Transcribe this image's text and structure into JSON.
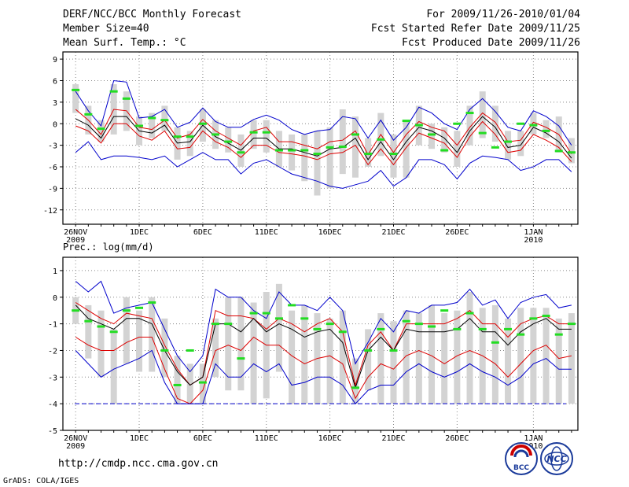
{
  "header": {
    "title": "DERF/NCC/BCC Monthly Forecast",
    "member_size": "Member Size=40",
    "variable": "Mean Surf. Temp.: °C",
    "period": "For 2009/11/26-2010/01/04",
    "started": "Fcst Started Refer Date 2009/11/25",
    "produced": "Fcst Produced Date 2009/11/26"
  },
  "footer": {
    "url": "http://cmdp.ncc.cma.gov.cn",
    "credit": "GrADS: COLA/IGES",
    "logo1_text": "BCC",
    "logo2_text": "NCC"
  },
  "colors": {
    "envelope": "#0000cc",
    "spread": "#dd0000",
    "mean": "#000000",
    "marker": "#22dd22",
    "bar": "#d3d3d3",
    "floor": "#0000cc"
  },
  "chart_data": [
    {
      "type": "line",
      "title": "Mean Surf. Temp.: °C",
      "ylim": [
        -14,
        10
      ],
      "yticks": [
        9,
        6,
        3,
        0,
        -3,
        -6,
        -9,
        -12
      ],
      "xlim": [
        -1,
        39.5
      ],
      "xtick_labels": [
        {
          "x": 0,
          "label": "26NOV",
          "sub": "2009"
        },
        {
          "x": 5,
          "label": "1DEC"
        },
        {
          "x": 10,
          "label": "6DEC"
        },
        {
          "x": 15,
          "label": "11DEC"
        },
        {
          "x": 20,
          "label": "16DEC"
        },
        {
          "x": 25,
          "label": "21DEC"
        },
        {
          "x": 30,
          "label": "26DEC"
        },
        {
          "x": 36,
          "label": "1JAN",
          "sub": "2010"
        }
      ],
      "series": [
        {
          "name": "max",
          "values": [
            4.5,
            1.8,
            -0.3,
            6.0,
            5.8,
            0.8,
            1.0,
            2.0,
            -0.5,
            0.2,
            2.2,
            0.3,
            -0.5,
            -0.5,
            0.6,
            1.2,
            0.5,
            -0.8,
            -1.5,
            -1.0,
            -0.8,
            1.0,
            0.7,
            -2.0,
            0.5,
            -2.3,
            -0.5,
            2.3,
            1.5,
            0.0,
            -0.8,
            2.0,
            3.5,
            1.7,
            -0.5,
            -1.0,
            1.8,
            1.0,
            -0.3,
            -3.0
          ]
        },
        {
          "name": "upper",
          "values": [
            2.0,
            0.5,
            -1.5,
            2.0,
            1.8,
            -0.5,
            -0.8,
            0.5,
            -2.0,
            -1.5,
            0.6,
            -1.0,
            -2.0,
            -3.0,
            -1.0,
            -0.5,
            -2.5,
            -2.5,
            -3.0,
            -3.5,
            -2.5,
            -2.3,
            -1.0,
            -4.3,
            -1.5,
            -4.0,
            -1.5,
            0.3,
            -0.5,
            -1.0,
            -3.0,
            -0.5,
            1.5,
            0.2,
            -2.5,
            -2.3,
            0.2,
            -0.5,
            -1.5,
            -4.2
          ]
        },
        {
          "name": "mean",
          "values": [
            0.7,
            -0.2,
            -2.0,
            1.0,
            1.0,
            -1.0,
            -1.3,
            -0.2,
            -2.7,
            -2.5,
            -0.2,
            -1.8,
            -2.7,
            -3.7,
            -2.0,
            -2.0,
            -3.5,
            -3.5,
            -4.0,
            -4.5,
            -3.5,
            -3.3,
            -2.0,
            -5.0,
            -2.5,
            -5.0,
            -2.5,
            -0.5,
            -1.0,
            -2.0,
            -4.0,
            -1.0,
            1.0,
            -0.5,
            -3.3,
            -3.0,
            -0.5,
            -1.3,
            -2.5,
            -4.8
          ]
        },
        {
          "name": "lower",
          "values": [
            -0.3,
            -1.0,
            -2.7,
            0.0,
            0.0,
            -1.7,
            -2.3,
            -1.0,
            -3.5,
            -3.3,
            -1.0,
            -2.5,
            -3.3,
            -4.7,
            -3.0,
            -3.0,
            -4.0,
            -4.2,
            -4.5,
            -5.0,
            -4.2,
            -4.0,
            -3.0,
            -5.7,
            -3.5,
            -5.7,
            -3.3,
            -1.3,
            -2.0,
            -2.7,
            -4.7,
            -1.8,
            0.3,
            -1.5,
            -4.0,
            -3.7,
            -1.5,
            -2.3,
            -3.3,
            -5.3
          ]
        },
        {
          "name": "min",
          "values": [
            -4.0,
            -2.5,
            -5.0,
            -4.5,
            -4.5,
            -4.7,
            -5.0,
            -4.5,
            -6.0,
            -5.0,
            -4.0,
            -5.0,
            -5.0,
            -7.0,
            -5.5,
            -5.0,
            -6.0,
            -7.0,
            -7.5,
            -8.0,
            -8.7,
            -9.0,
            -8.5,
            -8.0,
            -6.5,
            -8.7,
            -7.5,
            -5.0,
            -5.0,
            -5.7,
            -7.7,
            -5.5,
            -4.5,
            -4.7,
            -5.0,
            -6.5,
            -6.0,
            -5.0,
            -5.0,
            -6.7
          ]
        }
      ],
      "observed": [
        4.7,
        1.3,
        -0.7,
        4.5,
        3.5,
        -0.3,
        0.8,
        0.5,
        -1.8,
        -1.8,
        0.0,
        -1.5,
        -2.5,
        -4.0,
        -1.2,
        -1.2,
        -3.7,
        -3.7,
        -3.7,
        -4.2,
        -3.3,
        -3.2,
        -1.5,
        -4.2,
        -2.2,
        -4.2,
        0.4,
        -0.2,
        -1.5,
        -3.7,
        0.0,
        1.5,
        -1.3,
        -3.3,
        -2.5,
        0.0,
        -0.2,
        -1.0,
        -3.8,
        -4.0
      ],
      "bars": [
        [
          1.5,
          5.5
        ],
        [
          -1.5,
          2.5
        ],
        [
          -2.5,
          0.5
        ],
        [
          -1.5,
          5.5
        ],
        [
          -1.0,
          4.5
        ],
        [
          -3.0,
          1.0
        ],
        [
          -2.0,
          1.5
        ],
        [
          -1.0,
          2.5
        ],
        [
          -5.0,
          -0.5
        ],
        [
          -4.5,
          -1.0
        ],
        [
          -2.5,
          2.0
        ],
        [
          -3.5,
          0.5
        ],
        [
          -4.0,
          -0.5
        ],
        [
          -6.0,
          -1.5
        ],
        [
          -3.5,
          0.5
        ],
        [
          -4.0,
          0.5
        ],
        [
          -6.0,
          -1.0
        ],
        [
          -6.5,
          -1.5
        ],
        [
          -8.0,
          -1.5
        ],
        [
          -10.0,
          -1.0
        ],
        [
          -9.0,
          -0.5
        ],
        [
          -7.0,
          2.0
        ],
        [
          -7.5,
          1.0
        ],
        [
          -6.0,
          -2.0
        ],
        [
          -4.5,
          1.5
        ],
        [
          -7.5,
          -1.5
        ],
        [
          -7.5,
          0.5
        ],
        [
          -3.0,
          2.5
        ],
        [
          -3.5,
          0.0
        ],
        [
          -4.0,
          -0.5
        ],
        [
          -6.0,
          -1.0
        ],
        [
          -3.0,
          2.5
        ],
        [
          -2.0,
          4.5
        ],
        [
          -2.5,
          2.5
        ],
        [
          -5.0,
          -1.0
        ],
        [
          -4.5,
          -1.0
        ],
        [
          -1.5,
          1.5
        ],
        [
          -2.0,
          0.5
        ],
        [
          -4.0,
          1.0
        ],
        [
          -5.5,
          -2.0
        ]
      ]
    },
    {
      "type": "line",
      "title": "Prec.: log(mm/d)",
      "ylim": [
        -5,
        1.5
      ],
      "yticks": [
        1,
        0,
        -1,
        -2,
        -3,
        -4,
        -5
      ],
      "xlim": [
        -1,
        39.5
      ],
      "xtick_labels": [
        {
          "x": 0,
          "label": "26NOV",
          "sub": "2009"
        },
        {
          "x": 5,
          "label": "1DEC"
        },
        {
          "x": 10,
          "label": "6DEC"
        },
        {
          "x": 15,
          "label": "11DEC"
        },
        {
          "x": 20,
          "label": "16DEC"
        },
        {
          "x": 25,
          "label": "21DEC"
        },
        {
          "x": 30,
          "label": "26DEC"
        },
        {
          "x": 36,
          "label": "1JAN",
          "sub": "2010"
        }
      ],
      "floor": -4,
      "series": [
        {
          "name": "max",
          "values": [
            0.6,
            0.2,
            0.6,
            -0.6,
            -0.4,
            -0.3,
            -0.2,
            -1.2,
            -2.2,
            -2.8,
            -2.2,
            0.3,
            0.0,
            0.0,
            -0.5,
            -0.8,
            0.2,
            -0.3,
            -0.3,
            -0.5,
            0.0,
            -0.5,
            -2.5,
            -1.7,
            -0.8,
            -1.3,
            -0.5,
            -0.6,
            -0.3,
            -0.3,
            -0.2,
            0.3,
            -0.3,
            -0.1,
            -0.8,
            -0.2,
            0.0,
            0.1,
            -0.4,
            -0.3
          ]
        },
        {
          "name": "upper",
          "values": [
            -0.2,
            -0.5,
            -0.8,
            -1.0,
            -0.6,
            -0.7,
            -0.8,
            -1.8,
            -2.7,
            -3.3,
            -3.0,
            -0.5,
            -0.7,
            -0.7,
            -0.8,
            -1.2,
            -0.8,
            -1.0,
            -1.3,
            -1.0,
            -0.8,
            -1.3,
            -3.3,
            -1.8,
            -1.3,
            -2.0,
            -1.0,
            -1.0,
            -1.0,
            -1.0,
            -0.8,
            -0.5,
            -1.0,
            -1.0,
            -1.5,
            -1.0,
            -0.8,
            -0.7,
            -1.0,
            -1.0
          ]
        },
        {
          "name": "mean",
          "values": [
            -0.3,
            -0.8,
            -1.0,
            -1.2,
            -0.8,
            -0.8,
            -1.0,
            -2.0,
            -2.8,
            -3.3,
            -3.0,
            -1.0,
            -1.0,
            -1.3,
            -0.8,
            -1.3,
            -1.0,
            -1.2,
            -1.5,
            -1.3,
            -1.2,
            -1.7,
            -3.4,
            -2.0,
            -1.5,
            -2.0,
            -1.2,
            -1.3,
            -1.3,
            -1.3,
            -1.2,
            -0.8,
            -1.3,
            -1.3,
            -1.8,
            -1.3,
            -1.0,
            -0.8,
            -1.2,
            -1.2
          ]
        },
        {
          "name": "lower",
          "values": [
            -1.5,
            -1.8,
            -2.0,
            -2.0,
            -1.7,
            -1.5,
            -1.5,
            -2.7,
            -3.8,
            -4.0,
            -3.5,
            -2.0,
            -1.8,
            -2.0,
            -1.5,
            -1.8,
            -1.8,
            -2.2,
            -2.5,
            -2.3,
            -2.2,
            -2.5,
            -3.8,
            -3.0,
            -2.5,
            -2.7,
            -2.2,
            -2.0,
            -2.2,
            -2.5,
            -2.2,
            -2.0,
            -2.2,
            -2.5,
            -3.0,
            -2.5,
            -2.0,
            -1.8,
            -2.3,
            -2.2
          ]
        },
        {
          "name": "min",
          "values": [
            -2.0,
            -2.5,
            -3.0,
            -2.7,
            -2.5,
            -2.3,
            -2.0,
            -3.2,
            -4.0,
            -4.0,
            -4.0,
            -2.5,
            -3.0,
            -3.0,
            -2.5,
            -2.8,
            -2.5,
            -3.3,
            -3.2,
            -3.0,
            -3.0,
            -3.3,
            -4.0,
            -3.5,
            -3.3,
            -3.3,
            -2.8,
            -2.5,
            -2.8,
            -3.0,
            -2.8,
            -2.5,
            -2.8,
            -3.0,
            -3.3,
            -3.0,
            -2.5,
            -2.3,
            -2.7,
            -2.7
          ]
        }
      ],
      "observed": [
        -0.5,
        -0.9,
        -1.1,
        -1.3,
        -0.5,
        -0.4,
        -0.2,
        -2.0,
        -3.3,
        -2.0,
        -3.2,
        -1.0,
        -1.0,
        -2.3,
        -0.6,
        -0.6,
        -0.8,
        -0.3,
        -0.8,
        -1.2,
        -1.0,
        -1.3,
        -3.4,
        -2.0,
        -1.2,
        -2.0,
        -0.9,
        -1.0,
        -1.1,
        -0.5,
        -1.2,
        -0.6,
        -1.2,
        -1.7,
        -1.2,
        -1.4,
        -0.8,
        -0.7,
        -1.4,
        -1.0
      ],
      "bars": [
        [
          -1.0,
          0.0
        ],
        [
          -2.3,
          -0.3
        ],
        [
          -3.0,
          -0.5
        ],
        [
          -4.0,
          -1.2
        ],
        [
          -2.5,
          0.0
        ],
        [
          -2.8,
          -0.5
        ],
        [
          -2.8,
          0.0
        ],
        [
          -3.0,
          -0.8
        ],
        [
          -4.0,
          -2.2
        ],
        [
          -4.0,
          -2.5
        ],
        [
          -4.0,
          -2.5
        ],
        [
          -3.0,
          -0.8
        ],
        [
          -3.5,
          0.0
        ],
        [
          -3.5,
          0.0
        ],
        [
          -4.0,
          -0.2
        ],
        [
          -3.8,
          0.2
        ],
        [
          -2.8,
          0.5
        ],
        [
          -4.0,
          -0.5
        ],
        [
          -4.0,
          -0.3
        ],
        [
          -4.0,
          -0.6
        ],
        [
          -4.0,
          -0.8
        ],
        [
          -4.0,
          -0.5
        ],
        [
          -4.0,
          -2.3
        ],
        [
          -3.5,
          -1.2
        ],
        [
          -4.0,
          -0.6
        ],
        [
          -4.0,
          -0.9
        ],
        [
          -4.0,
          -0.5
        ],
        [
          -4.0,
          -0.6
        ],
        [
          -4.0,
          -0.3
        ],
        [
          -4.0,
          -0.6
        ],
        [
          -4.0,
          -0.5
        ],
        [
          -4.0,
          0.2
        ],
        [
          -4.0,
          -0.4
        ],
        [
          -4.0,
          -0.3
        ],
        [
          -4.0,
          -0.8
        ],
        [
          -4.0,
          -0.4
        ],
        [
          -4.0,
          -0.4
        ],
        [
          -4.0,
          -0.4
        ],
        [
          -4.0,
          -0.8
        ],
        [
          -4.0,
          -0.6
        ]
      ]
    }
  ]
}
